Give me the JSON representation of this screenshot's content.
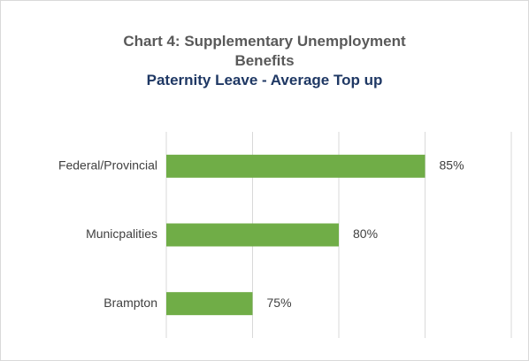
{
  "chart_data": {
    "type": "barh",
    "title": "Chart 4: Supplementary Unemployment Benefits",
    "subtitle": "Paternity Leave - Average Top up",
    "categories": [
      "Federal/Provincial",
      "Municpalities",
      "Brampton"
    ],
    "values": [
      85,
      80,
      75
    ],
    "value_labels": [
      "85%",
      "80%",
      "75%"
    ],
    "color": "#70ad47",
    "xlim": [
      70,
      90
    ],
    "xticks": [
      70,
      75,
      80,
      85,
      90
    ],
    "grid": true
  }
}
